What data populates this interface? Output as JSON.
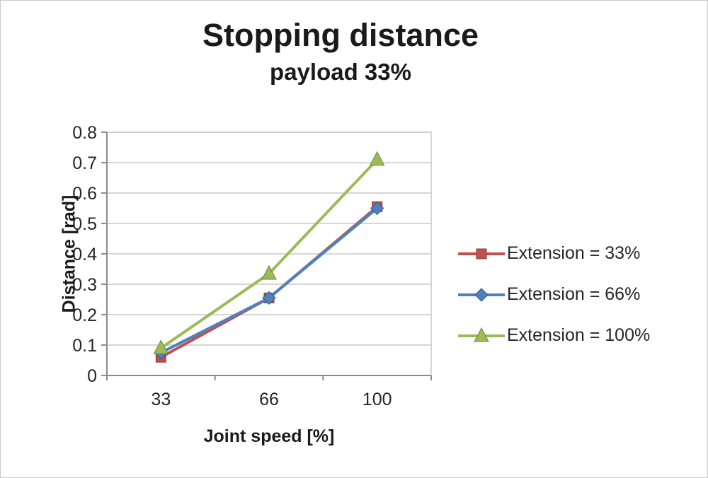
{
  "chart_data": {
    "type": "line",
    "title": "Stopping distance",
    "subtitle": "payload 33%",
    "xlabel": "Joint speed [%]",
    "ylabel": "Distance [rad]",
    "categories": [
      "33",
      "66",
      "100"
    ],
    "series": [
      {
        "name": "Extension = 33%",
        "marker": "square",
        "color": "#C0504D",
        "values": [
          0.06,
          0.255,
          0.555
        ]
      },
      {
        "name": "Extension = 66%",
        "marker": "diamond",
        "color": "#4F81BD",
        "values": [
          0.075,
          0.255,
          0.55
        ]
      },
      {
        "name": "Extension = 100%",
        "marker": "triangle",
        "color": "#9BBB59",
        "values": [
          0.09,
          0.335,
          0.71
        ]
      }
    ],
    "ylim": [
      0,
      0.8
    ],
    "ytick_step": 0.1,
    "grid": true,
    "legend_position": "right",
    "grid_color": "#c9c9c9",
    "axis_color": "#8c8c8c"
  }
}
